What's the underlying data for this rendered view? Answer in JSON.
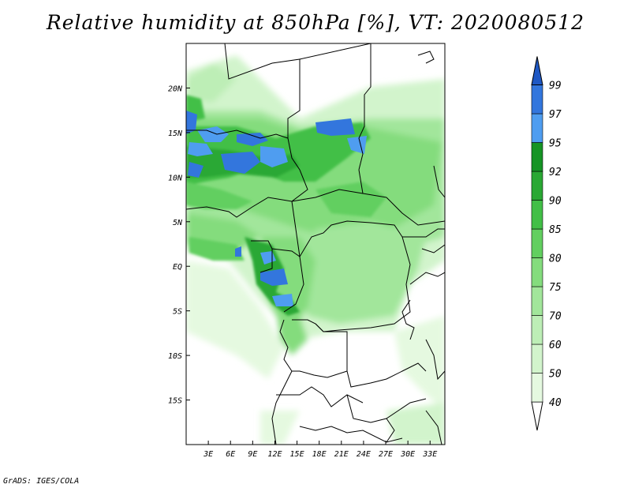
{
  "title": "Relative humidity at 850hPa [%], VT: 2020080512",
  "credit": "GrADS: IGES/COLA",
  "map": {
    "lon_range": [
      0,
      35
    ],
    "lat_range": [
      -20,
      25
    ],
    "lon_ticks": [
      "3E",
      "6E",
      "9E",
      "12E",
      "15E",
      "18E",
      "21E",
      "24E",
      "27E",
      "30E",
      "33E"
    ],
    "lon_values": [
      3,
      6,
      9,
      12,
      15,
      18,
      21,
      24,
      27,
      30,
      33
    ],
    "lat_ticks": [
      "20N",
      "15N",
      "10N",
      "5N",
      "EQ",
      "5S",
      "10S",
      "15S"
    ],
    "lat_values": [
      20,
      15,
      10,
      5,
      0,
      -5,
      -10,
      -15
    ]
  },
  "colorbar": {
    "levels": [
      "40",
      "50",
      "60",
      "70",
      "75",
      "80",
      "85",
      "90",
      "92",
      "95",
      "97",
      "99"
    ],
    "colors": [
      "#ffffff",
      "#e5f9e0",
      "#d2f4cc",
      "#bdeeb6",
      "#a2e69b",
      "#84dc7d",
      "#62cf60",
      "#42bf47",
      "#2aa834",
      "#169425",
      "#4f9df0",
      "#3376dd",
      "#1f58c4"
    ]
  }
}
